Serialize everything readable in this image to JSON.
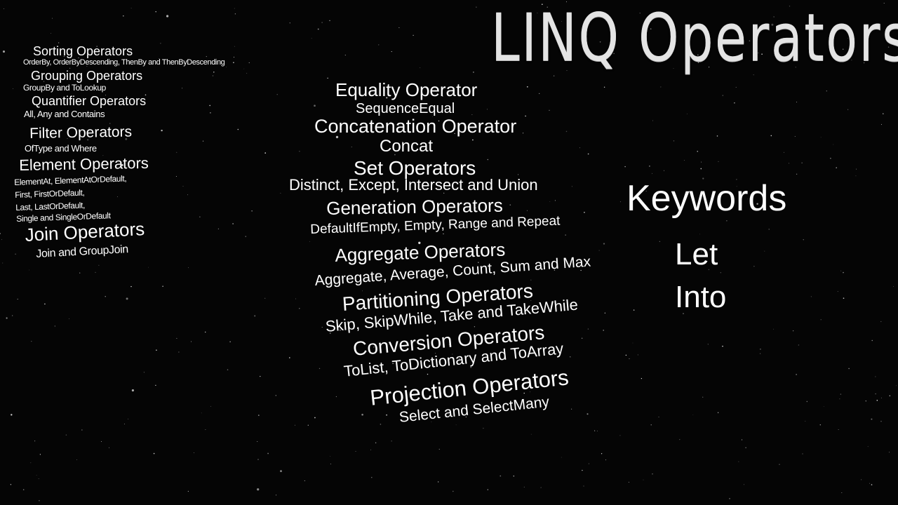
{
  "title": "LINQ Operators",
  "left_column": [
    {
      "heading": "Sorting Operators",
      "sub": [
        "OrderBy, OrderByDescending, ThenBy and ThenByDescending"
      ]
    },
    {
      "heading": "Grouping Operators",
      "sub": [
        "GroupBy and ToLookup"
      ]
    },
    {
      "heading": "Quantifier Operators",
      "sub": [
        "All, Any and Contains"
      ]
    },
    {
      "heading": "Filter Operators",
      "sub": [
        "OfType and Where"
      ]
    },
    {
      "heading": "Element Operators",
      "sub": [
        "ElementAt, ElementAtOrDefault,",
        "First, FirstOrDefault,",
        "Last, LastOrDefault,",
        "Single and SingleOrDefault"
      ]
    },
    {
      "heading": "Join Operators",
      "sub": [
        "Join and GroupJoin"
      ]
    }
  ],
  "middle_column": [
    {
      "heading": "Equality Operator",
      "sub": "SequenceEqual"
    },
    {
      "heading": "Concatenation Operator",
      "sub": "Concat"
    },
    {
      "heading": "Set Operators",
      "sub": "Distinct, Except, Intersect and Union"
    },
    {
      "heading": "Generation Operators",
      "sub": "DefaultIfEmpty, Empty, Range and Repeat"
    },
    {
      "heading": "Aggregate Operators",
      "sub": "Aggregate, Average, Count, Sum and Max"
    },
    {
      "heading": "Partitioning Operators",
      "sub": "Skip, SkipWhile, Take and TakeWhile"
    },
    {
      "heading": "Conversion Operators",
      "sub": "ToList, ToDictionary and ToArray"
    },
    {
      "heading": "Projection Operators",
      "sub": "Select and SelectMany"
    }
  ],
  "keywords": {
    "heading": "Keywords",
    "items": [
      "Let",
      "Into"
    ]
  },
  "colors": {
    "background": "#050505",
    "text": "#ffffff",
    "title": "#e4e4e4"
  }
}
